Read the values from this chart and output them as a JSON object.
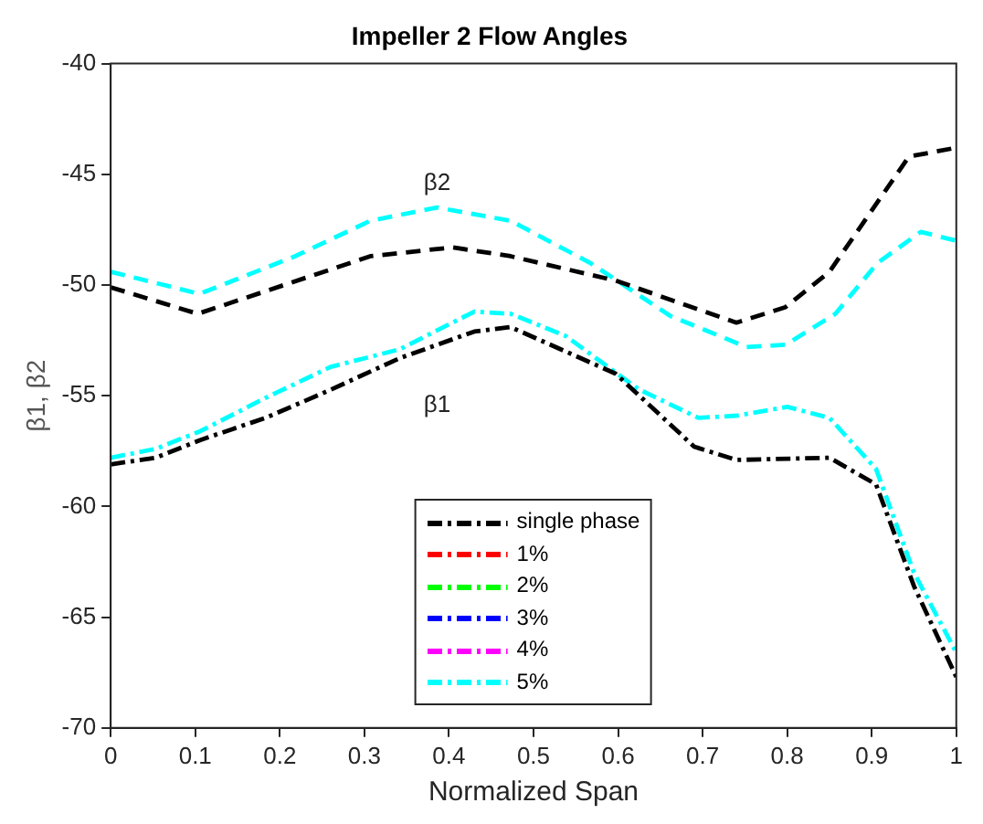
{
  "chart_data": {
    "type": "line",
    "title": "Impeller 2 Flow Angles",
    "xlabel": "Normalized Span",
    "ylabel": "β1, β2",
    "xlim": [
      0,
      1
    ],
    "xticks": [
      0,
      0.1,
      0.2,
      0.3,
      0.4,
      0.5,
      0.6,
      0.7,
      0.8,
      0.9,
      1
    ],
    "ylim": [
      -70,
      -40
    ],
    "yticks": [
      -70,
      -65,
      -60,
      -55,
      -50,
      -45,
      -40
    ],
    "grid": false,
    "legend": "bottom",
    "marker": "none",
    "annotations": [
      "β2",
      "β1"
    ],
    "series": [
      {
        "name": "single phase",
        "color": "#000000",
        "line_style": "dashdot",
        "x": [
          0,
          0.053,
          0.106,
          0.183,
          0.256,
          0.342,
          0.43,
          0.473,
          0.597,
          0.69,
          0.74,
          0.85,
          0.905,
          0.95,
          1
        ],
        "values": [
          -58.1,
          -57.8,
          -57.0,
          -56.0,
          -54.8,
          -53.3,
          -52.1,
          -51.9,
          -54.0,
          -57.3,
          -57.9,
          -57.8,
          -59.0,
          -63.6,
          -67.7
        ]
      },
      {
        "color": "#000000",
        "line_style": "dashed",
        "x": [
          0,
          0.103,
          0.307,
          0.404,
          0.473,
          0.597,
          0.74,
          0.798,
          0.85,
          0.944,
          1
        ],
        "values": [
          -50.1,
          -51.3,
          -48.7,
          -48.3,
          -48.7,
          -49.8,
          -51.7,
          -51.0,
          -49.4,
          -44.2,
          -43.8
        ]
      },
      {
        "name": "1%",
        "color": "#ff0000",
        "line_style": "dashdot"
      },
      {
        "name": "2%",
        "color": "#00ff00",
        "line_style": "dashdot"
      },
      {
        "name": "3%",
        "color": "#0000ff",
        "line_style": "dashdot"
      },
      {
        "name": "4%",
        "color": "#ff00ff",
        "line_style": "dashdot"
      },
      {
        "name": "5%",
        "color": "#00ffff",
        "line_style": "dashdot",
        "x": [
          0,
          0.053,
          0.106,
          0.183,
          0.26,
          0.342,
          0.43,
          0.473,
          0.538,
          0.624,
          0.695,
          0.74,
          0.8,
          0.85,
          0.905,
          0.95,
          1
        ],
        "values": [
          -57.8,
          -57.4,
          -56.6,
          -55.1,
          -53.7,
          -52.9,
          -51.2,
          -51.3,
          -52.3,
          -54.7,
          -56.0,
          -55.9,
          -55.5,
          -56.0,
          -58.3,
          -63.0,
          -66.6
        ]
      },
      {
        "color": "#00ffff",
        "line_style": "dashed",
        "x": [
          0,
          0.105,
          0.218,
          0.307,
          0.386,
          0.473,
          0.567,
          0.662,
          0.752,
          0.798,
          0.857,
          0.907,
          0.958,
          1
        ],
        "values": [
          -49.4,
          -50.4,
          -48.7,
          -47.1,
          -46.5,
          -47.1,
          -49.0,
          -51.4,
          -52.8,
          -52.7,
          -51.3,
          -49.0,
          -47.6,
          -48.0
        ]
      }
    ]
  }
}
